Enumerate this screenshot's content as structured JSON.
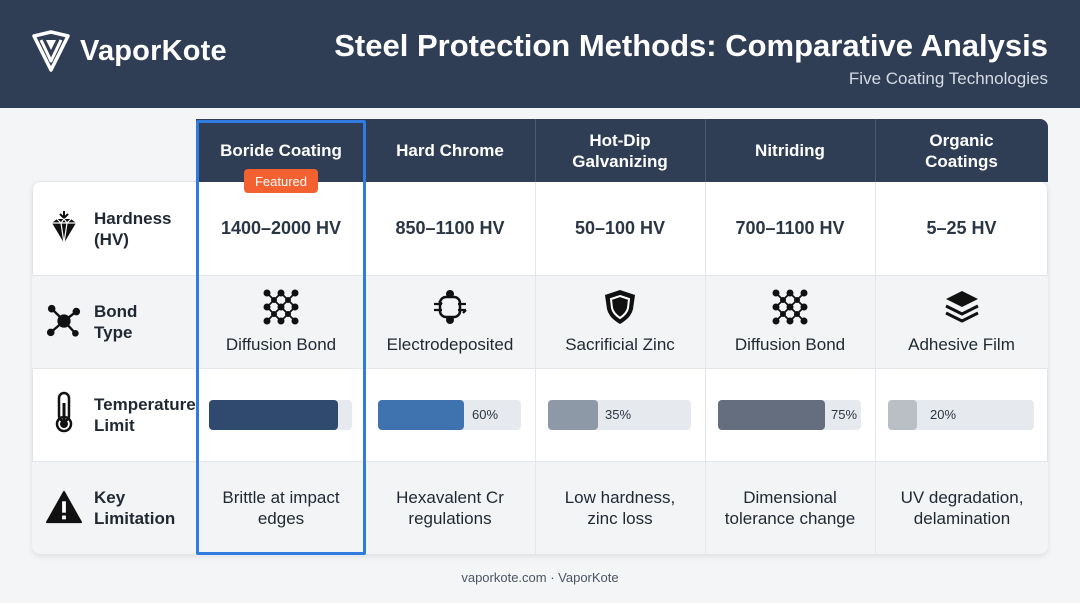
{
  "brand": {
    "name": "VaporKote",
    "logo_icon": "v-shield-logo-icon"
  },
  "header": {
    "title": "Steel Protection Methods: Comparative Analysis",
    "subtitle": "Five Coating Technologies"
  },
  "columns": [
    {
      "label": "Boride Coating",
      "featured": true
    },
    {
      "label": "Hard Chrome"
    },
    {
      "label": "Hot-Dip Galvanizing"
    },
    {
      "label": "Nitriding"
    },
    {
      "label": "Organic Coatings"
    }
  ],
  "featured_badge": "Featured",
  "rows": {
    "hardness": {
      "label": "Hardness (HV)",
      "icon": "diamond-icon",
      "values": [
        "1400–2000 HV",
        "850–1100 HV",
        "50–100 HV",
        "700–1100 HV",
        "5–25 HV"
      ]
    },
    "bond": {
      "label": "Bond Type",
      "icon": "molecule-icon",
      "values": [
        {
          "text": "Diffusion Bond",
          "icon": "lattice-icon"
        },
        {
          "text": "Electrodeposited",
          "icon": "electrode-icon"
        },
        {
          "text": "Sacrificial Zinc",
          "icon": "shield-icon"
        },
        {
          "text": "Diffusion Bond",
          "icon": "lattice-icon"
        },
        {
          "text": "Adhesive Film",
          "icon": "layers-icon"
        }
      ]
    },
    "temperature": {
      "label": "Temperature Limit",
      "icon": "thermometer-icon",
      "values": [
        {
          "percent": 90,
          "pct_label": "",
          "color": "#2f4a6e"
        },
        {
          "percent": 60,
          "pct_label": "60%",
          "color": "#3f73b0"
        },
        {
          "percent": 35,
          "pct_label": "35%",
          "color": "#8e99a8"
        },
        {
          "percent": 75,
          "pct_label": "75%",
          "color": "#646e7e"
        },
        {
          "percent": 20,
          "pct_label": "20%",
          "color": "#babfc6"
        }
      ]
    },
    "limitation": {
      "label": "Key Limitation",
      "icon": "warning-icon",
      "values": [
        "Brittle at impact edges",
        "Hexavalent Cr regulations",
        "Low hardness, zinc loss",
        "Dimensional tolerance change",
        "UV degradation, delamination"
      ]
    }
  },
  "footer": "vaporkote.com · VaporKote"
}
